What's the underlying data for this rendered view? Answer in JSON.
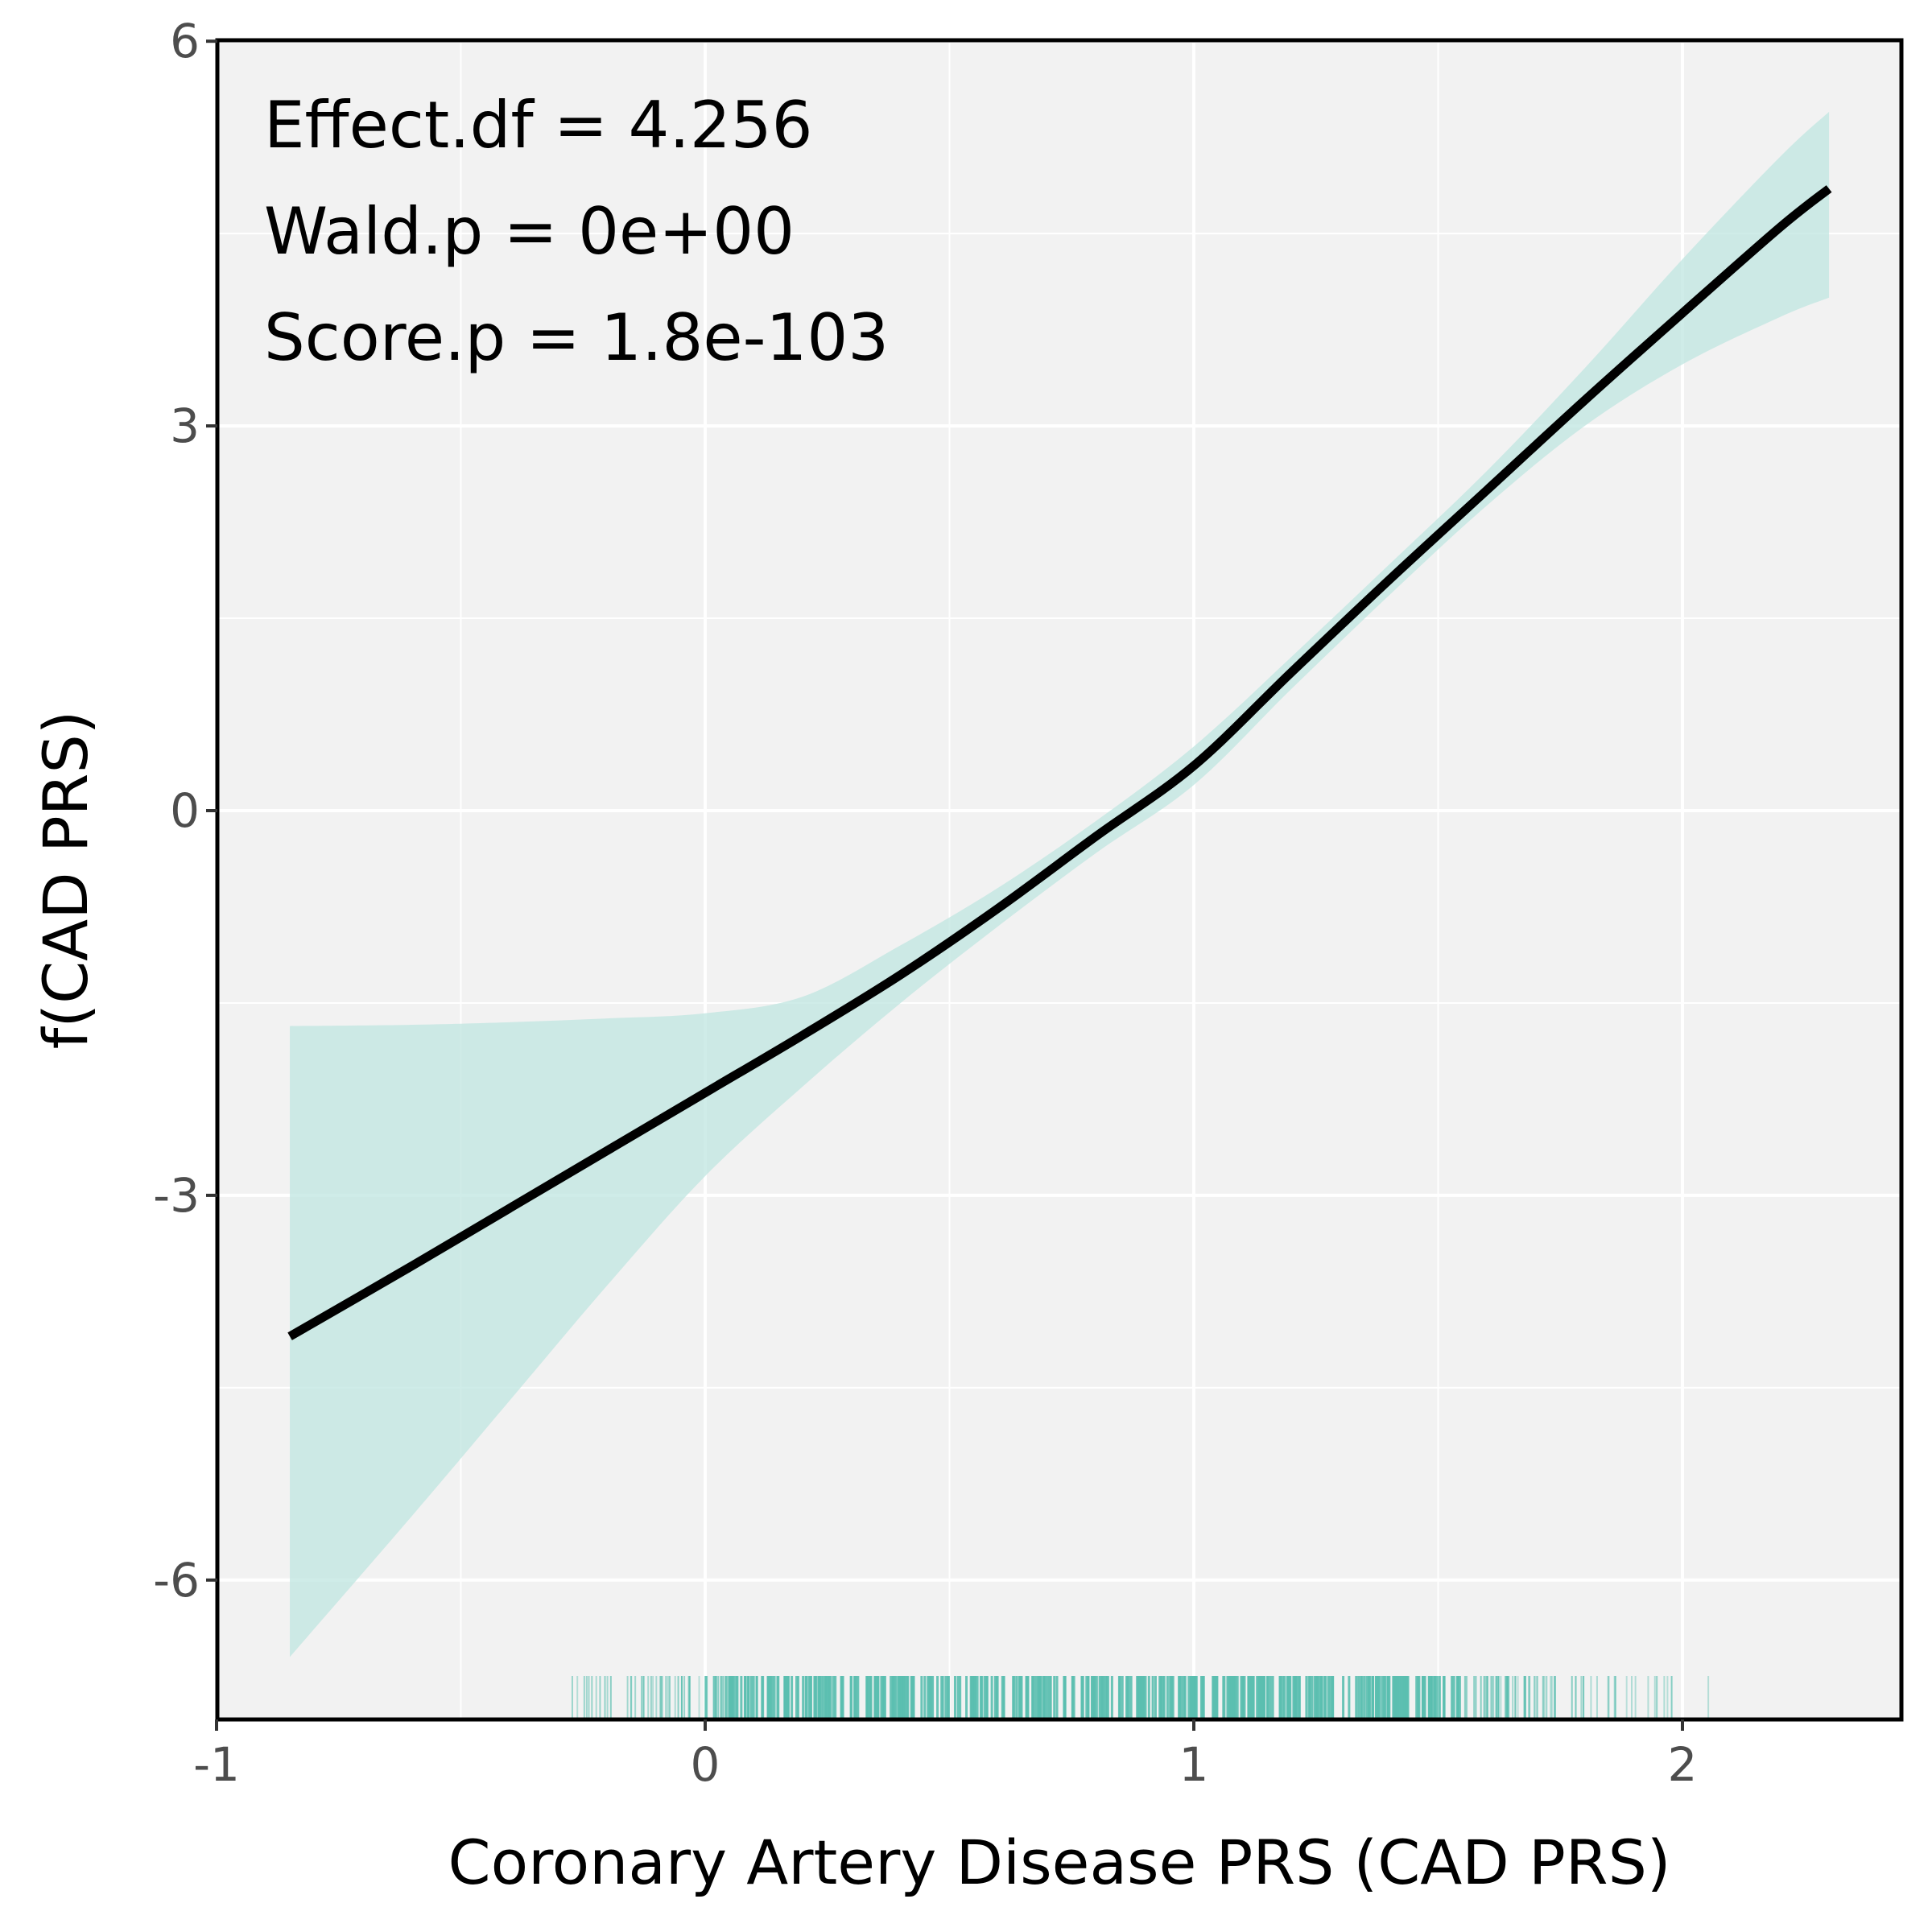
{
  "chart_data": {
    "type": "line",
    "xlabel": "Coronary Artery Disease PRS (CAD PRS)",
    "ylabel": "f(CAD PRS)",
    "xlim": [
      -1,
      2.45
    ],
    "ylim": [
      -7.0,
      6.0
    ],
    "x_ticks": [
      -1,
      0,
      1,
      2
    ],
    "y_ticks": [
      -6,
      -3,
      0,
      3,
      6
    ],
    "x_tick_labels": [
      "-1",
      "0",
      "1",
      "2"
    ],
    "y_tick_labels": [
      "-6",
      "-3",
      "0",
      "3",
      "6"
    ],
    "grid": true,
    "annotations": [
      "Effect.df = 4.256",
      "Wald.p = 0e+00",
      "Score.p = 1.8e-103"
    ],
    "colors": {
      "line": "#000000",
      "ribbon": "#bfe5e0",
      "rug": "#5bbfb0",
      "panel": "#f2f2f2",
      "grid": "#ffffff"
    },
    "series": [
      {
        "x": [
          -0.85,
          -0.6,
          -0.4,
          -0.2,
          0.0,
          0.2,
          0.4,
          0.6,
          0.8,
          1.0,
          1.2,
          1.4,
          1.6,
          1.8,
          2.0,
          2.2,
          2.3
        ],
        "y": [
          -4.1,
          -3.55,
          -3.1,
          -2.65,
          -2.2,
          -1.75,
          -1.28,
          -0.76,
          -0.2,
          0.35,
          1.08,
          1.8,
          2.5,
          3.2,
          3.88,
          4.55,
          4.85
        ],
        "lower": [
          -6.6,
          -5.5,
          -4.6,
          -3.7,
          -2.85,
          -2.15,
          -1.5,
          -0.9,
          -0.33,
          0.2,
          0.95,
          1.68,
          2.38,
          3.0,
          3.48,
          3.85,
          4.0
        ],
        "upper": [
          -1.68,
          -1.67,
          -1.65,
          -1.62,
          -1.58,
          -1.45,
          -1.05,
          -0.6,
          -0.08,
          0.5,
          1.2,
          1.92,
          2.65,
          3.45,
          4.3,
          5.1,
          5.45
        ]
      }
    ],
    "rug": {
      "range": [
        -0.33,
        2.07
      ],
      "dense_range": [
        0.05,
        1.55
      ]
    }
  }
}
